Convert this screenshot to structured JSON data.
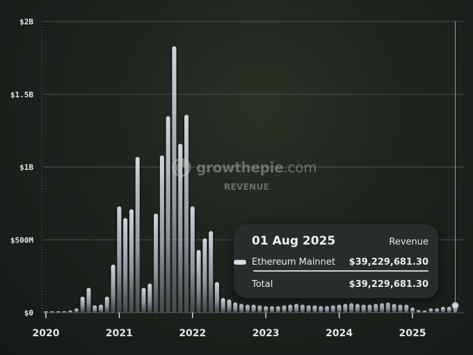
{
  "chart_data": {
    "type": "bar",
    "metric": "Revenue",
    "unit": "USD",
    "y_ticks": [
      "$0",
      "$500M",
      "$1B",
      "$1.5B",
      "$2B"
    ],
    "y_tick_values": [
      0,
      500000000,
      1000000000,
      1500000000,
      2000000000
    ],
    "x_ticks": [
      "2020",
      "2021",
      "2022",
      "2023",
      "2024",
      "2025"
    ],
    "ylim": [
      0,
      2000000000
    ],
    "x_start": "2020-01",
    "x_end": "2025-08",
    "grid": true,
    "series": [
      {
        "name": "Ethereum Mainnet",
        "color": "#cfd5de",
        "values": [
          2000000,
          3000000,
          4000000,
          8000000,
          15000000,
          30000000,
          110000000,
          170000000,
          50000000,
          55000000,
          110000000,
          330000000,
          730000000,
          650000000,
          710000000,
          1070000000,
          170000000,
          200000000,
          680000000,
          1080000000,
          1350000000,
          1830000000,
          1160000000,
          1360000000,
          730000000,
          430000000,
          510000000,
          560000000,
          210000000,
          100000000,
          90000000,
          70000000,
          60000000,
          55000000,
          55000000,
          50000000,
          45000000,
          45000000,
          45000000,
          50000000,
          55000000,
          60000000,
          55000000,
          50000000,
          50000000,
          45000000,
          45000000,
          50000000,
          55000000,
          60000000,
          65000000,
          60000000,
          55000000,
          55000000,
          60000000,
          65000000,
          70000000,
          60000000,
          55000000,
          55000000,
          35000000,
          18000000,
          15000000,
          30000000,
          30000000,
          40000000,
          40000000,
          39229681.3
        ]
      }
    ],
    "tooltip": {
      "date": "01 Aug 2025",
      "metric": "Revenue",
      "rows": [
        {
          "name": "Ethereum Mainnet",
          "value": "$39,229,681.30"
        }
      ],
      "total_label": "Total",
      "total_value": "$39,229,681.30"
    }
  },
  "watermark": {
    "brand": "growthepie",
    "brand_suffix": ".com",
    "subtitle": "REVENUE"
  }
}
